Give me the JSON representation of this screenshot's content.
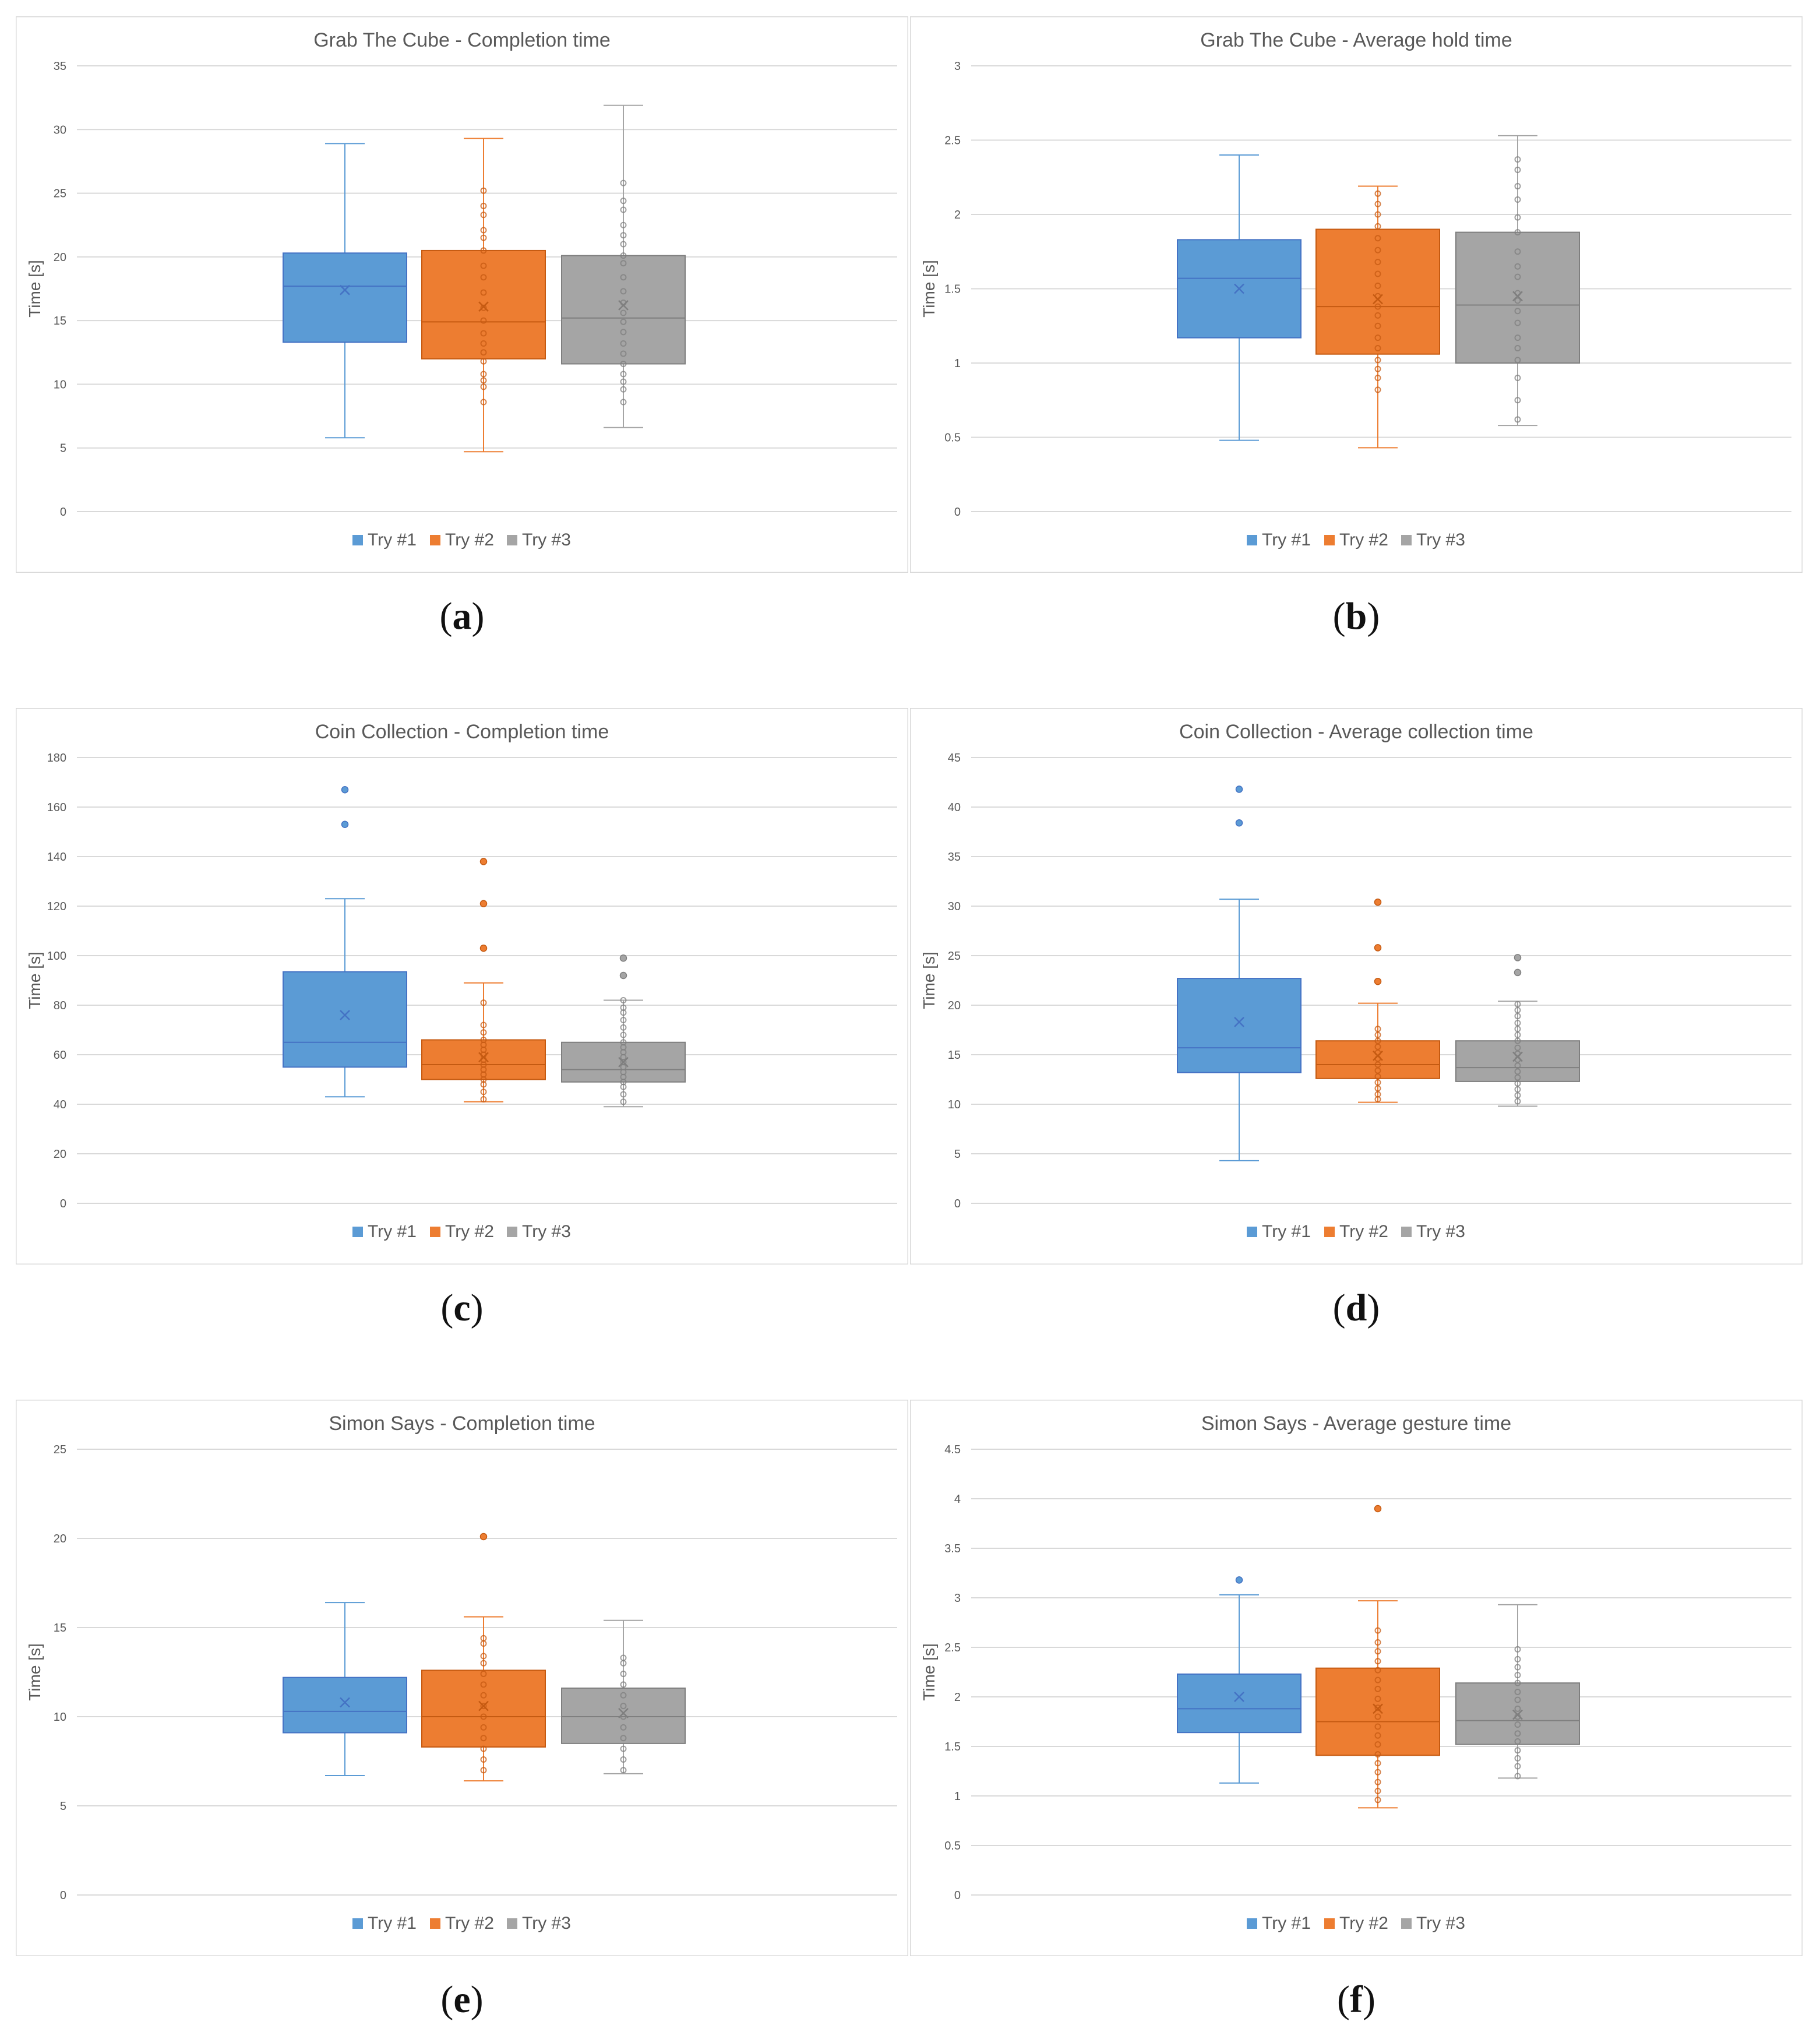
{
  "colors": {
    "try1": "#5b9bd5",
    "try1_edge": "#4472c4",
    "try2": "#ed7d31",
    "try2_edge": "#c55a11",
    "try3": "#a5a5a5",
    "try3_edge": "#7f7f7f",
    "grid": "#d9d9d9",
    "text": "#595959",
    "frame": "#d9d9d9"
  },
  "legend": [
    "Try #1",
    "Try #2",
    "Try #3"
  ],
  "chart_data": [
    {
      "type": "box",
      "caption": "a",
      "title": "Grab The Cube - Completion time",
      "ylabel": "Time [s]",
      "ylim": [
        0,
        35
      ],
      "yticks": [
        "0",
        "5",
        "10",
        "15",
        "20",
        "25",
        "30",
        "35"
      ],
      "ytick_values": [
        0,
        5,
        10,
        15,
        20,
        25,
        30,
        35
      ],
      "series": [
        {
          "name": "Try #1",
          "min": 5.8,
          "q1": 13.3,
          "median": 17.7,
          "q3": 20.3,
          "max": 28.9,
          "mean": 17.4,
          "points": [],
          "outliers": []
        },
        {
          "name": "Try #2",
          "min": 4.7,
          "q1": 12.0,
          "median": 14.9,
          "q3": 20.5,
          "max": 29.3,
          "mean": 16.1,
          "points": [
            8.6,
            9.8,
            10.3,
            10.8,
            11.8,
            12.5,
            13.2,
            14.0,
            15.0,
            16.0,
            17.2,
            18.4,
            19.3,
            20.5,
            21.5,
            22.1,
            23.3,
            24.0,
            25.2
          ],
          "outliers": []
        },
        {
          "name": "Try #3",
          "min": 6.6,
          "q1": 11.6,
          "median": 15.2,
          "q3": 20.1,
          "max": 31.9,
          "mean": 16.2,
          "points": [
            8.6,
            9.6,
            10.2,
            10.8,
            11.6,
            12.4,
            13.2,
            14.1,
            14.9,
            15.6,
            16.4,
            17.3,
            18.4,
            19.5,
            20.1,
            21.0,
            21.7,
            22.5,
            23.7,
            24.4,
            25.8
          ],
          "outliers": []
        }
      ]
    },
    {
      "type": "box",
      "caption": "b",
      "title": "Grab The Cube - Average hold time",
      "ylabel": "Time [s]",
      "ylim": [
        0,
        3
      ],
      "yticks": [
        "0",
        "0.5",
        "1",
        "1.5",
        "2",
        "2.5",
        "3"
      ],
      "ytick_values": [
        0,
        0.5,
        1,
        1.5,
        2,
        2.5,
        3
      ],
      "series": [
        {
          "name": "Try #1",
          "min": 0.48,
          "q1": 1.17,
          "median": 1.57,
          "q3": 1.83,
          "max": 2.4,
          "mean": 1.5,
          "points": [],
          "outliers": []
        },
        {
          "name": "Try #2",
          "min": 0.43,
          "q1": 1.06,
          "median": 1.38,
          "q3": 1.9,
          "max": 2.19,
          "mean": 1.43,
          "points": [
            0.82,
            0.9,
            0.96,
            1.02,
            1.1,
            1.17,
            1.25,
            1.32,
            1.38,
            1.45,
            1.52,
            1.6,
            1.68,
            1.76,
            1.84,
            1.92,
            2.0,
            2.07,
            2.14
          ],
          "outliers": []
        },
        {
          "name": "Try #3",
          "min": 0.58,
          "q1": 1.0,
          "median": 1.39,
          "q3": 1.88,
          "max": 2.53,
          "mean": 1.45,
          "points": [
            0.62,
            0.75,
            0.9,
            1.02,
            1.1,
            1.17,
            1.27,
            1.35,
            1.42,
            1.47,
            1.58,
            1.65,
            1.75,
            1.88,
            1.98,
            2.1,
            2.19,
            2.3,
            2.37
          ],
          "outliers": []
        }
      ]
    },
    {
      "type": "box",
      "caption": "c",
      "title": "Coin Collection - Completion time",
      "ylabel": "Time [s]",
      "ylim": [
        0,
        180
      ],
      "yticks": [
        "0",
        "20",
        "40",
        "60",
        "80",
        "100",
        "120",
        "140",
        "160",
        "180"
      ],
      "ytick_values": [
        0,
        20,
        40,
        60,
        80,
        100,
        120,
        140,
        160,
        180
      ],
      "series": [
        {
          "name": "Try #1",
          "min": 43,
          "q1": 55,
          "median": 65,
          "q3": 93.5,
          "max": 123,
          "mean": 76,
          "points": [],
          "outliers": [
            153,
            167
          ]
        },
        {
          "name": "Try #2",
          "min": 41,
          "q1": 50,
          "median": 56,
          "q3": 66,
          "max": 89,
          "mean": 59,
          "points": [
            42,
            45,
            48,
            50,
            52,
            54,
            56,
            58,
            60,
            62,
            64,
            66,
            69,
            72,
            81
          ],
          "outliers": [
            103,
            121,
            138
          ]
        },
        {
          "name": "Try #3",
          "min": 39,
          "q1": 49,
          "median": 54,
          "q3": 65,
          "max": 82,
          "mean": 57,
          "points": [
            41,
            44,
            47,
            49,
            51,
            53,
            55,
            57,
            59,
            61,
            63,
            65,
            68,
            71,
            74,
            77,
            79,
            82
          ],
          "outliers": [
            92,
            99
          ]
        }
      ]
    },
    {
      "type": "box",
      "caption": "d",
      "title": "Coin Collection - Average collection time",
      "ylabel": "Time [s]",
      "ylim": [
        0,
        45
      ],
      "yticks": [
        "0",
        "5",
        "10",
        "15",
        "20",
        "25",
        "30",
        "35",
        "40",
        "45"
      ],
      "ytick_values": [
        0,
        5,
        10,
        15,
        20,
        25,
        30,
        35,
        40,
        45
      ],
      "series": [
        {
          "name": "Try #1",
          "min": 4.3,
          "q1": 13.2,
          "median": 15.7,
          "q3": 22.7,
          "max": 30.7,
          "mean": 18.3,
          "points": [],
          "outliers": [
            38.4,
            41.8
          ]
        },
        {
          "name": "Try #2",
          "min": 10.2,
          "q1": 12.6,
          "median": 14.0,
          "q3": 16.4,
          "max": 20.2,
          "mean": 14.9,
          "points": [
            10.5,
            11.0,
            11.6,
            12.2,
            12.8,
            13.4,
            14.0,
            14.6,
            15.2,
            15.8,
            16.4,
            17.0,
            17.6
          ],
          "outliers": [
            22.4,
            25.8,
            30.4
          ]
        },
        {
          "name": "Try #3",
          "min": 9.8,
          "q1": 12.3,
          "median": 13.7,
          "q3": 16.4,
          "max": 20.4,
          "mean": 14.8,
          "points": [
            10.3,
            10.9,
            11.5,
            12.1,
            12.7,
            13.3,
            13.9,
            14.5,
            15.1,
            15.7,
            16.4,
            17.0,
            17.6,
            18.2,
            18.9,
            19.5,
            20.1
          ],
          "outliers": [
            23.3,
            24.8
          ]
        }
      ]
    },
    {
      "type": "box",
      "caption": "e",
      "title": "Simon Says - Completion time",
      "ylabel": "Time [s]",
      "ylim": [
        0,
        25
      ],
      "yticks": [
        "0",
        "5",
        "10",
        "15",
        "20",
        "25"
      ],
      "ytick_values": [
        0,
        5,
        10,
        15,
        20,
        25
      ],
      "series": [
        {
          "name": "Try #1",
          "min": 6.7,
          "q1": 9.1,
          "median": 10.3,
          "q3": 12.2,
          "max": 16.4,
          "mean": 10.8,
          "points": [],
          "outliers": []
        },
        {
          "name": "Try #2",
          "min": 6.4,
          "q1": 8.3,
          "median": 10.0,
          "q3": 12.6,
          "max": 15.6,
          "mean": 10.6,
          "points": [
            7.0,
            7.6,
            8.2,
            8.8,
            9.4,
            10.0,
            10.6,
            11.2,
            11.8,
            12.4,
            13.0,
            13.4,
            14.1,
            14.4
          ],
          "outliers": [
            20.1
          ]
        },
        {
          "name": "Try #3",
          "min": 6.8,
          "q1": 8.5,
          "median": 10.0,
          "q3": 11.6,
          "max": 15.4,
          "mean": 10.2,
          "points": [
            7.0,
            7.6,
            8.2,
            8.8,
            9.4,
            10.0,
            10.6,
            11.2,
            11.8,
            12.4,
            13.0,
            13.3
          ],
          "outliers": []
        }
      ]
    },
    {
      "type": "box",
      "caption": "f",
      "title": "Simon Says - Average gesture time",
      "ylabel": "Time [s]",
      "ylim": [
        0,
        4.5
      ],
      "yticks": [
        "0",
        "0.5",
        "1",
        "1.5",
        "2",
        "2.5",
        "3",
        "3.5",
        "4",
        "4.5"
      ],
      "ytick_values": [
        0,
        0.5,
        1,
        1.5,
        2,
        2.5,
        3,
        3.5,
        4,
        4.5
      ],
      "series": [
        {
          "name": "Try #1",
          "min": 1.13,
          "q1": 1.64,
          "median": 1.88,
          "q3": 2.23,
          "max": 3.03,
          "mean": 2.0,
          "points": [],
          "outliers": [
            3.18
          ]
        },
        {
          "name": "Try #2",
          "min": 0.88,
          "q1": 1.41,
          "median": 1.75,
          "q3": 2.29,
          "max": 2.97,
          "mean": 1.88,
          "points": [
            0.96,
            1.05,
            1.14,
            1.24,
            1.33,
            1.42,
            1.52,
            1.61,
            1.7,
            1.8,
            1.89,
            1.98,
            2.08,
            2.17,
            2.27,
            2.36,
            2.46,
            2.55,
            2.67
          ],
          "outliers": [
            3.9
          ]
        },
        {
          "name": "Try #3",
          "min": 1.18,
          "q1": 1.52,
          "median": 1.76,
          "q3": 2.14,
          "max": 2.93,
          "mean": 1.82,
          "points": [
            1.2,
            1.3,
            1.38,
            1.46,
            1.55,
            1.63,
            1.72,
            1.8,
            1.88,
            1.97,
            2.05,
            2.14,
            2.22,
            2.3,
            2.38,
            2.48
          ],
          "outliers": []
        }
      ]
    }
  ]
}
